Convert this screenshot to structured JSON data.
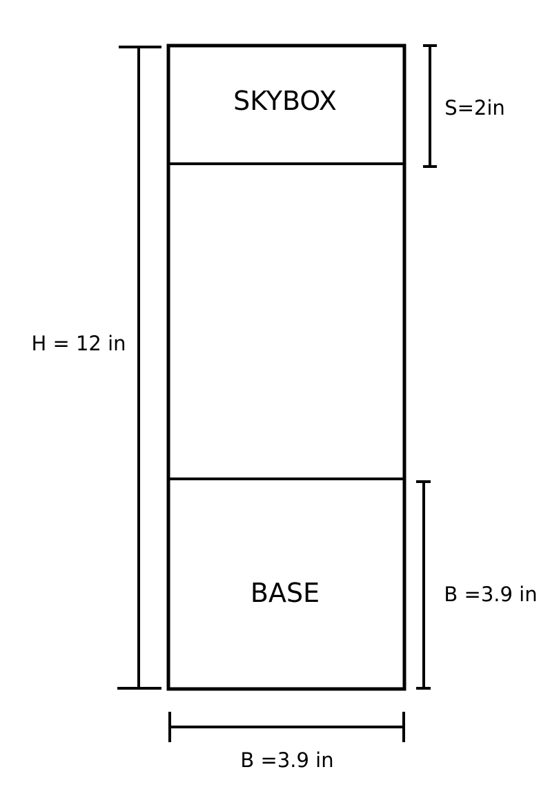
{
  "labels": {
    "skybox": "SKYBOX",
    "base": "BASE"
  },
  "dimensions": {
    "height": "H = 12 in",
    "skybox": "S=2in",
    "base_height": "B =3.9 in",
    "base_width": "B =3.9 in"
  }
}
